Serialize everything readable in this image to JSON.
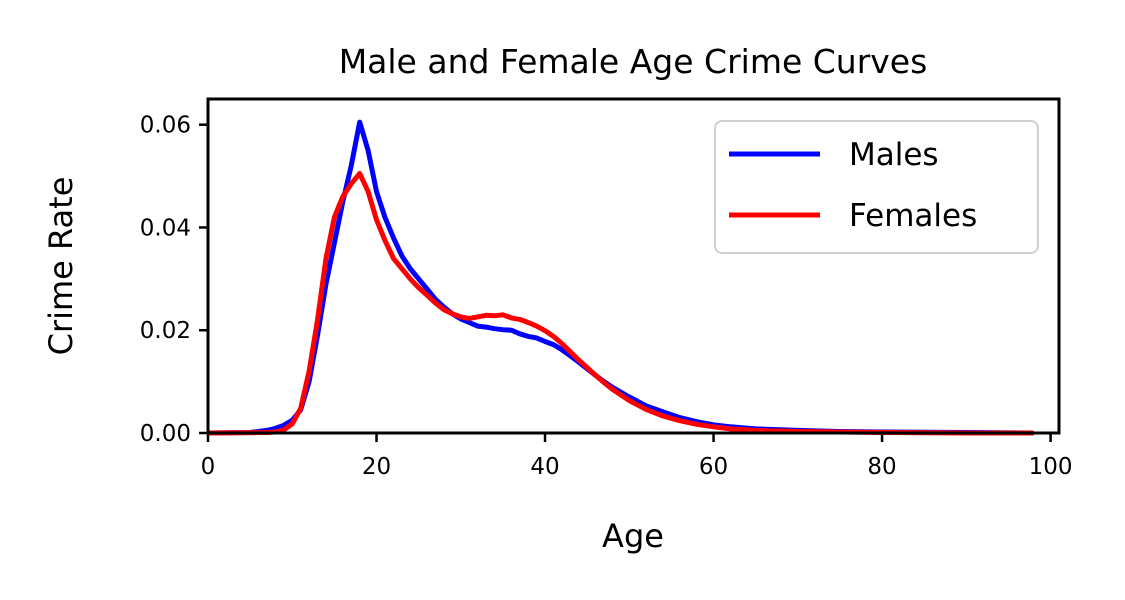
{
  "chart_data": {
    "type": "line",
    "title": "Male and Female Age Crime Curves",
    "xlabel": "Age",
    "ylabel": "Crime Rate",
    "xlim": [
      0,
      101
    ],
    "ylim": [
      0,
      0.065
    ],
    "x_ticks": [
      {
        "value": 0,
        "label": "0"
      },
      {
        "value": 20,
        "label": "20"
      },
      {
        "value": 40,
        "label": "40"
      },
      {
        "value": 60,
        "label": "60"
      },
      {
        "value": 80,
        "label": "80"
      },
      {
        "value": 100,
        "label": "100"
      }
    ],
    "y_ticks": [
      {
        "value": 0,
        "label": "0.00"
      },
      {
        "value": 0.02,
        "label": "0.02"
      },
      {
        "value": 0.04,
        "label": "0.04"
      },
      {
        "value": 0.06,
        "label": "0.06"
      }
    ],
    "grid": false,
    "legend_position": "top-right",
    "series": [
      {
        "name": "Males",
        "color": "#0000ff",
        "points": [
          [
            0,
            0
          ],
          [
            5,
            0.0001
          ],
          [
            7,
            0.0005
          ],
          [
            8,
            0.0009
          ],
          [
            9,
            0.0015
          ],
          [
            10,
            0.0025
          ],
          [
            11,
            0.0045
          ],
          [
            12,
            0.01
          ],
          [
            13,
            0.019
          ],
          [
            14,
            0.029
          ],
          [
            15,
            0.037
          ],
          [
            16,
            0.045
          ],
          [
            17,
            0.052
          ],
          [
            18,
            0.0605
          ],
          [
            19,
            0.055
          ],
          [
            20,
            0.047
          ],
          [
            21,
            0.042
          ],
          [
            22,
            0.038
          ],
          [
            23,
            0.0345
          ],
          [
            24,
            0.032
          ],
          [
            25,
            0.03
          ],
          [
            26,
            0.028
          ],
          [
            27,
            0.026
          ],
          [
            28,
            0.0245
          ],
          [
            29,
            0.0232
          ],
          [
            30,
            0.0222
          ],
          [
            31,
            0.0215
          ],
          [
            32,
            0.0208
          ],
          [
            33,
            0.0206
          ],
          [
            34,
            0.0203
          ],
          [
            35,
            0.0201
          ],
          [
            36,
            0.02
          ],
          [
            37,
            0.0193
          ],
          [
            38,
            0.0188
          ],
          [
            39,
            0.0185
          ],
          [
            40,
            0.0178
          ],
          [
            41,
            0.0172
          ],
          [
            42,
            0.0162
          ],
          [
            43,
            0.015
          ],
          [
            44,
            0.0138
          ],
          [
            45,
            0.0125
          ],
          [
            46,
            0.0112
          ],
          [
            47,
            0.01
          ],
          [
            48,
            0.0089
          ],
          [
            50,
            0.007
          ],
          [
            52,
            0.0053
          ],
          [
            54,
            0.0041
          ],
          [
            56,
            0.003
          ],
          [
            58,
            0.0022
          ],
          [
            60,
            0.0016
          ],
          [
            62,
            0.0012
          ],
          [
            65,
            0.0008
          ],
          [
            70,
            0.0005
          ],
          [
            75,
            0.0003
          ],
          [
            80,
            0.0002
          ],
          [
            90,
            0.0001
          ],
          [
            98,
            0
          ]
        ]
      },
      {
        "name": "Females",
        "color": "#ff0000",
        "points": [
          [
            0,
            0
          ],
          [
            7,
            0.0001
          ],
          [
            8,
            0.0002
          ],
          [
            9,
            0.0006
          ],
          [
            10,
            0.0018
          ],
          [
            11,
            0.0048
          ],
          [
            12,
            0.012
          ],
          [
            13,
            0.022
          ],
          [
            14,
            0.034
          ],
          [
            15,
            0.042
          ],
          [
            16,
            0.046
          ],
          [
            17,
            0.0485
          ],
          [
            18,
            0.0505
          ],
          [
            19,
            0.047
          ],
          [
            20,
            0.0415
          ],
          [
            21,
            0.0375
          ],
          [
            22,
            0.034
          ],
          [
            23,
            0.032
          ],
          [
            24,
            0.03
          ],
          [
            25,
            0.0283
          ],
          [
            26,
            0.0268
          ],
          [
            27,
            0.0253
          ],
          [
            28,
            0.024
          ],
          [
            29,
            0.0232
          ],
          [
            30,
            0.0226
          ],
          [
            31,
            0.0223
          ],
          [
            32,
            0.0226
          ],
          [
            33,
            0.0229
          ],
          [
            34,
            0.0228
          ],
          [
            35,
            0.023
          ],
          [
            36,
            0.0224
          ],
          [
            37,
            0.0221
          ],
          [
            38,
            0.0215
          ],
          [
            39,
            0.0208
          ],
          [
            40,
            0.0199
          ],
          [
            41,
            0.0188
          ],
          [
            42,
            0.0174
          ],
          [
            43,
            0.0158
          ],
          [
            44,
            0.0142
          ],
          [
            45,
            0.0127
          ],
          [
            46,
            0.0112
          ],
          [
            47,
            0.0098
          ],
          [
            48,
            0.0085
          ],
          [
            50,
            0.0063
          ],
          [
            52,
            0.0046
          ],
          [
            54,
            0.0033
          ],
          [
            56,
            0.0024
          ],
          [
            58,
            0.0017
          ],
          [
            60,
            0.0012
          ],
          [
            62,
            0.0008
          ],
          [
            65,
            0.0005
          ],
          [
            70,
            0.0003
          ],
          [
            75,
            0.0002
          ],
          [
            80,
            0.0001
          ],
          [
            90,
            0
          ],
          [
            98,
            0
          ]
        ]
      }
    ]
  }
}
